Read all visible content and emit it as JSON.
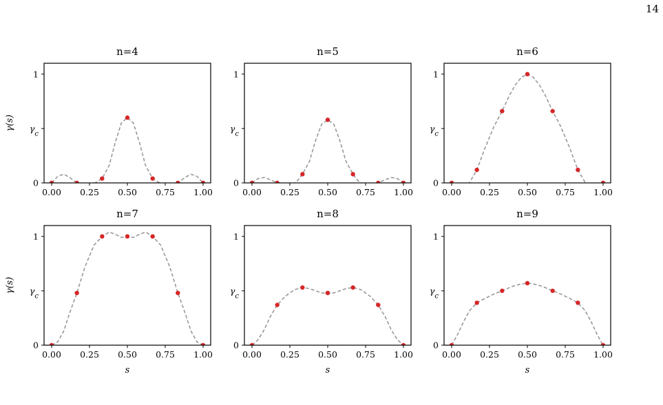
{
  "page_number": "14",
  "chart_data": [
    {
      "type": "line",
      "title": "n=4",
      "ylabel": "γ(s)",
      "xlabel": "",
      "xticks": [
        "0.00",
        "0.25",
        "0.50",
        "0.75",
        "1.00"
      ],
      "yticks": [
        "0",
        "γ_c",
        "1"
      ],
      "ylim": [
        0,
        1.1
      ],
      "points_x": [
        0,
        0.1667,
        0.3333,
        0.5,
        0.6667,
        0.8333,
        1.0
      ],
      "points_y": [
        0,
        0,
        0.04,
        0.6,
        0.04,
        0,
        0
      ],
      "curve_x": [
        0,
        0.04,
        0.08,
        0.12,
        0.1667,
        0.2,
        0.25,
        0.3,
        0.3333,
        0.38,
        0.42,
        0.46,
        0.5,
        0.54,
        0.58,
        0.62,
        0.6667,
        0.7,
        0.75,
        0.8,
        0.8333,
        0.88,
        0.92,
        0.96,
        1.0
      ],
      "curve_y": [
        0,
        0.06,
        0.08,
        0.05,
        0,
        -0.03,
        -0.02,
        0.01,
        0.04,
        0.16,
        0.37,
        0.55,
        0.6,
        0.55,
        0.37,
        0.16,
        0.04,
        0.01,
        -0.02,
        -0.03,
        0,
        0.05,
        0.08,
        0.06,
        0
      ]
    },
    {
      "type": "line",
      "title": "n=5",
      "ylabel": "",
      "xlabel": "",
      "xticks": [
        "0.00",
        "0.25",
        "0.50",
        "0.75",
        "1.00"
      ],
      "yticks": [
        "0",
        "γ_c",
        "1"
      ],
      "ylim": [
        0,
        1.1
      ],
      "points_x": [
        0,
        0.1667,
        0.3333,
        0.5,
        0.6667,
        0.8333,
        1.0
      ],
      "points_y": [
        0,
        0,
        0.08,
        0.58,
        0.08,
        0,
        0
      ],
      "curve_x": [
        0,
        0.04,
        0.08,
        0.12,
        0.1667,
        0.2,
        0.25,
        0.3,
        0.3333,
        0.38,
        0.42,
        0.46,
        0.5,
        0.54,
        0.58,
        0.62,
        0.6667,
        0.7,
        0.75,
        0.8,
        0.8333,
        0.88,
        0.92,
        0.96,
        1.0
      ],
      "curve_y": [
        0,
        0.04,
        0.05,
        0.03,
        0,
        -0.02,
        -0.03,
        0.02,
        0.08,
        0.2,
        0.39,
        0.54,
        0.58,
        0.54,
        0.39,
        0.2,
        0.08,
        0.02,
        -0.03,
        -0.02,
        0,
        0.03,
        0.05,
        0.04,
        0
      ]
    },
    {
      "type": "line",
      "title": "n=6",
      "ylabel": "",
      "xlabel": "",
      "xticks": [
        "0.00",
        "0.25",
        "0.50",
        "0.75",
        "1.00"
      ],
      "yticks": [
        "0",
        "γ_c",
        "1"
      ],
      "ylim": [
        0,
        1.1
      ],
      "points_x": [
        0,
        0.1667,
        0.3333,
        0.5,
        0.6667,
        0.8333,
        1.0
      ],
      "points_y": [
        0,
        0.12,
        0.66,
        1.0,
        0.66,
        0.12,
        0
      ],
      "curve_x": [
        0,
        0.05,
        0.1,
        0.1667,
        0.22,
        0.28,
        0.3333,
        0.38,
        0.42,
        0.46,
        0.5,
        0.54,
        0.58,
        0.62,
        0.6667,
        0.72,
        0.78,
        0.8333,
        0.9,
        0.95,
        1.0
      ],
      "curve_y": [
        0,
        -0.07,
        -0.04,
        0.12,
        0.32,
        0.52,
        0.66,
        0.8,
        0.9,
        0.97,
        1.0,
        0.97,
        0.9,
        0.8,
        0.66,
        0.52,
        0.32,
        0.12,
        -0.04,
        -0.07,
        0
      ]
    },
    {
      "type": "line",
      "title": "n=7",
      "ylabel": "γ(s)",
      "xlabel": "s",
      "xticks": [
        "0.00",
        "0.25",
        "0.50",
        "0.75",
        "1.00"
      ],
      "yticks": [
        "0",
        "γ_c",
        "1"
      ],
      "ylim": [
        0,
        1.1
      ],
      "points_x": [
        0,
        0.1667,
        0.3333,
        0.5,
        0.6667,
        0.8333,
        1.0
      ],
      "points_y": [
        0,
        0.48,
        1.0,
        1.0,
        1.0,
        0.48,
        0
      ],
      "curve_x": [
        0,
        0.04,
        0.08,
        0.12,
        0.1667,
        0.22,
        0.28,
        0.3333,
        0.38,
        0.42,
        0.46,
        0.5,
        0.54,
        0.58,
        0.62,
        0.6667,
        0.72,
        0.78,
        0.8333,
        0.88,
        0.92,
        0.96,
        1.0
      ],
      "curve_y": [
        0,
        0.03,
        0.13,
        0.3,
        0.48,
        0.72,
        0.92,
        1.0,
        1.04,
        1.02,
        0.99,
        1.0,
        0.99,
        1.02,
        1.04,
        1.0,
        0.92,
        0.72,
        0.48,
        0.3,
        0.13,
        0.03,
        0
      ]
    },
    {
      "type": "line",
      "title": "n=8",
      "ylabel": "",
      "xlabel": "s",
      "xticks": [
        "0.00",
        "0.25",
        "0.50",
        "0.75",
        "1.00"
      ],
      "yticks": [
        "0",
        "γ_c",
        "1"
      ],
      "ylim": [
        0,
        1.1
      ],
      "points_x": [
        0,
        0.1667,
        0.3333,
        0.5,
        0.6667,
        0.8333,
        1.0
      ],
      "points_y": [
        0,
        0.37,
        0.53,
        0.48,
        0.53,
        0.37,
        0
      ],
      "curve_x": [
        0,
        0.04,
        0.08,
        0.12,
        0.1667,
        0.22,
        0.28,
        0.3333,
        0.38,
        0.42,
        0.46,
        0.5,
        0.54,
        0.58,
        0.62,
        0.6667,
        0.72,
        0.78,
        0.8333,
        0.88,
        0.92,
        0.96,
        1.0
      ],
      "curve_y": [
        0,
        0.05,
        0.14,
        0.26,
        0.37,
        0.45,
        0.51,
        0.53,
        0.52,
        0.5,
        0.48,
        0.48,
        0.48,
        0.5,
        0.52,
        0.53,
        0.51,
        0.45,
        0.37,
        0.26,
        0.14,
        0.05,
        0
      ]
    },
    {
      "type": "line",
      "title": "n=9",
      "ylabel": "",
      "xlabel": "s",
      "xticks": [
        "0.00",
        "0.25",
        "0.50",
        "0.75",
        "1.00"
      ],
      "yticks": [
        "0",
        "γ_c",
        "1"
      ],
      "ylim": [
        0,
        1.1
      ],
      "points_x": [
        0,
        0.1667,
        0.3333,
        0.5,
        0.6667,
        0.8333,
        1.0
      ],
      "points_y": [
        0,
        0.39,
        0.5,
        0.57,
        0.5,
        0.39,
        0
      ],
      "curve_x": [
        0,
        0.04,
        0.08,
        0.12,
        0.1667,
        0.22,
        0.28,
        0.3333,
        0.4,
        0.45,
        0.5,
        0.55,
        0.6,
        0.6667,
        0.72,
        0.78,
        0.8333,
        0.88,
        0.92,
        0.96,
        1.0
      ],
      "curve_y": [
        0,
        0.1,
        0.22,
        0.32,
        0.39,
        0.43,
        0.47,
        0.5,
        0.54,
        0.56,
        0.57,
        0.56,
        0.54,
        0.5,
        0.47,
        0.43,
        0.39,
        0.32,
        0.22,
        0.1,
        0
      ]
    }
  ]
}
